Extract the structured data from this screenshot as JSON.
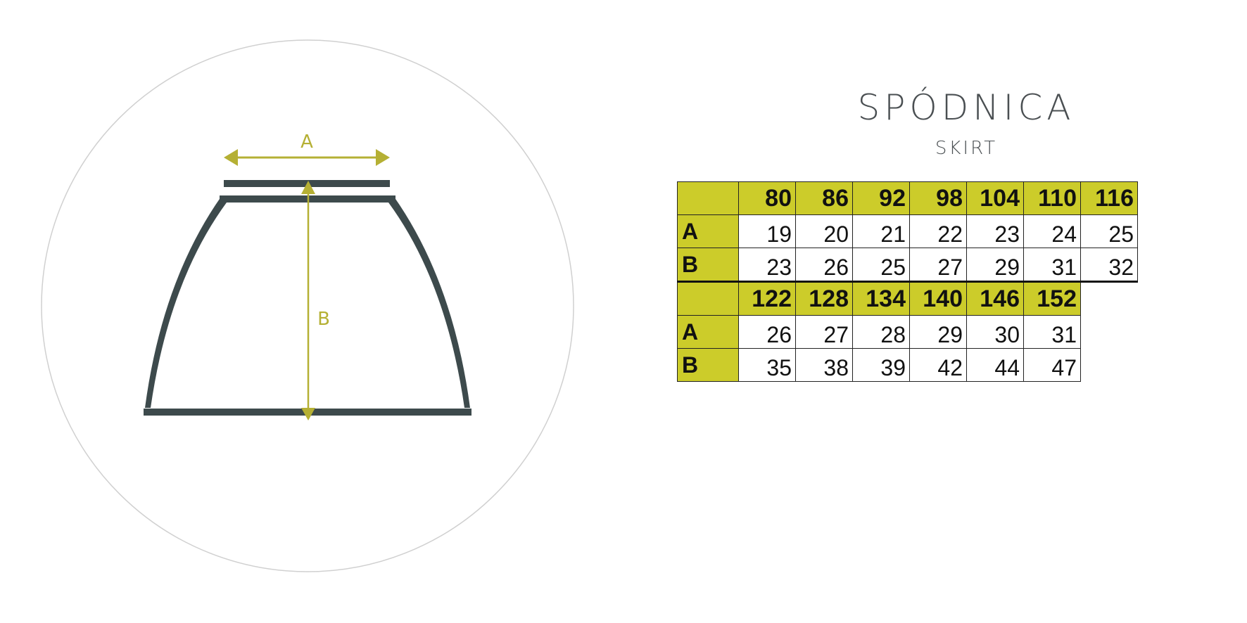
{
  "title": "SPÓDNICA",
  "subtitle": "SKIRT",
  "diagram": {
    "label_a": "A",
    "label_b": "B",
    "garment_color": "#3d4a4c",
    "arrow_color": "#b5b034"
  },
  "table": {
    "header_color": "#cccc2a",
    "blocks": [
      {
        "sizes": [
          "80",
          "86",
          "92",
          "98",
          "104",
          "110",
          "116"
        ],
        "rows": [
          {
            "label": "A",
            "values": [
              "19",
              "20",
              "21",
              "22",
              "23",
              "24",
              "25"
            ]
          },
          {
            "label": "B",
            "values": [
              "23",
              "26",
              "25",
              "27",
              "29",
              "31",
              "32"
            ]
          }
        ]
      },
      {
        "sizes": [
          "122",
          "128",
          "134",
          "140",
          "146",
          "152"
        ],
        "rows": [
          {
            "label": "A",
            "values": [
              "26",
              "27",
              "28",
              "29",
              "30",
              "31"
            ]
          },
          {
            "label": "B",
            "values": [
              "35",
              "38",
              "39",
              "42",
              "44",
              "47"
            ]
          }
        ]
      }
    ]
  }
}
